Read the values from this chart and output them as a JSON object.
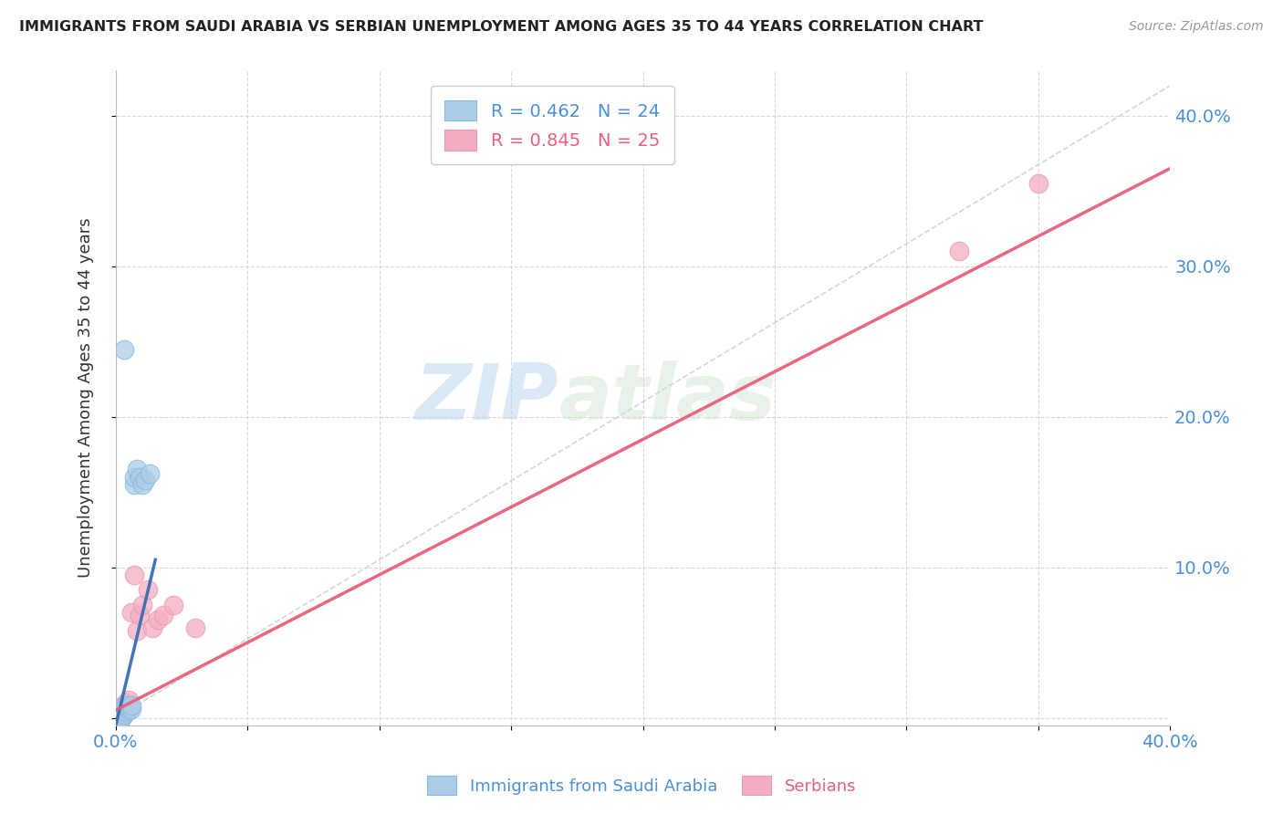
{
  "title": "IMMIGRANTS FROM SAUDI ARABIA VS SERBIAN UNEMPLOYMENT AMONG AGES 35 TO 44 YEARS CORRELATION CHART",
  "source": "Source: ZipAtlas.com",
  "ylabel": "Unemployment Among Ages 35 to 44 years",
  "xlim": [
    0.0,
    0.4
  ],
  "ylim": [
    -0.005,
    0.43
  ],
  "ytick_positions": [
    0.0,
    0.1,
    0.2,
    0.3,
    0.4
  ],
  "ytick_labels": [
    "",
    "10.0%",
    "20.0%",
    "30.0%",
    "40.0%"
  ],
  "xtick_positions": [
    0.0,
    0.05,
    0.1,
    0.15,
    0.2,
    0.25,
    0.3,
    0.35,
    0.4
  ],
  "xtick_labels": [
    "0.0%",
    "",
    "",
    "",
    "",
    "",
    "",
    "",
    "40.0%"
  ],
  "legend_blue_r": "R = 0.462",
  "legend_blue_n": "N = 24",
  "legend_pink_r": "R = 0.845",
  "legend_pink_n": "N = 25",
  "blue_color": "#aecce8",
  "pink_color": "#f5aec0",
  "blue_line_color": "#3a6db5",
  "pink_line_color": "#e8607a",
  "blue_edge_color": "#85b8e0",
  "pink_edge_color": "#e898b0",
  "watermark_zip": "ZIP",
  "watermark_atlas": "atlas",
  "saudi_x": [
    0.001,
    0.001,
    0.001,
    0.002,
    0.002,
    0.002,
    0.002,
    0.003,
    0.003,
    0.003,
    0.004,
    0.004,
    0.005,
    0.005,
    0.006,
    0.006,
    0.007,
    0.007,
    0.008,
    0.009,
    0.01,
    0.011,
    0.013,
    0.003
  ],
  "saudi_y": [
    0.002,
    0.005,
    0.0,
    0.003,
    0.005,
    0.007,
    0.0,
    0.004,
    0.006,
    0.002,
    0.004,
    0.008,
    0.005,
    0.007,
    0.006,
    0.008,
    0.155,
    0.16,
    0.165,
    0.16,
    0.155,
    0.158,
    0.162,
    0.245
  ],
  "serbian_x": [
    0.001,
    0.001,
    0.002,
    0.002,
    0.002,
    0.003,
    0.003,
    0.003,
    0.004,
    0.004,
    0.005,
    0.005,
    0.006,
    0.007,
    0.008,
    0.009,
    0.01,
    0.012,
    0.014,
    0.016,
    0.018,
    0.022,
    0.03,
    0.32,
    0.35
  ],
  "serbian_y": [
    0.002,
    0.005,
    0.004,
    0.007,
    0.0,
    0.005,
    0.008,
    0.003,
    0.006,
    0.01,
    0.008,
    0.012,
    0.07,
    0.095,
    0.058,
    0.068,
    0.075,
    0.085,
    0.06,
    0.065,
    0.068,
    0.075,
    0.06,
    0.31,
    0.355
  ],
  "blue_trendline_x": [
    0.0,
    0.015
  ],
  "blue_trendline_y": [
    -0.005,
    0.105
  ],
  "pink_trendline_x": [
    0.0,
    0.4
  ],
  "pink_trendline_y": [
    0.005,
    0.365
  ],
  "diag_line_x": [
    0.0,
    0.4
  ],
  "diag_line_y": [
    0.0,
    0.42
  ]
}
